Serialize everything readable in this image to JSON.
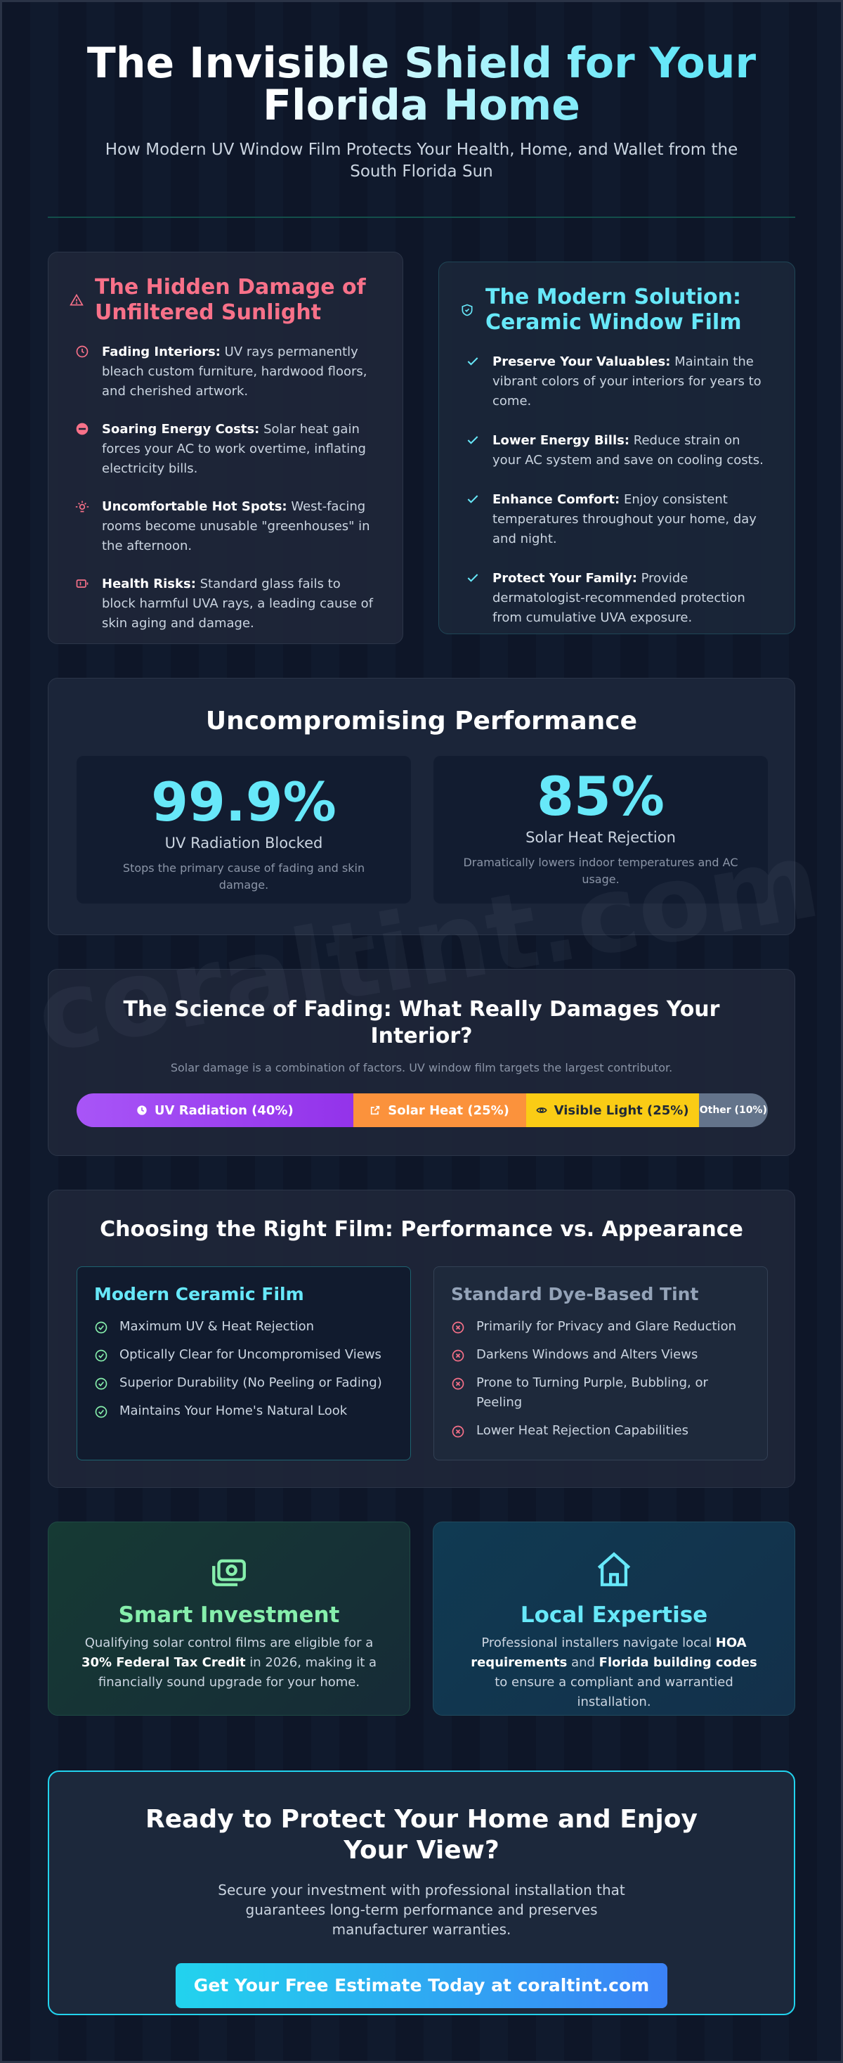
{
  "header": {
    "title": "The Invisible Shield for Your Florida Home",
    "subtitle": "How Modern UV Window Film Protects Your Health, Home, and Wallet from the South Florida Sun"
  },
  "damage": {
    "title": "The Hidden Damage of Unfiltered Sunlight",
    "items": [
      {
        "bold": "Fading Interiors:",
        "text": " UV rays permanently bleach custom furniture, hardwood floors, and cherished artwork.",
        "icon": "clock-icon"
      },
      {
        "bold": "Soaring Energy Costs:",
        "text": " Solar heat gain forces your AC to work overtime, inflating electricity bills.",
        "icon": "minus-circle-icon"
      },
      {
        "bold": "Uncomfortable Hot Spots:",
        "text": " West-facing rooms become unusable \"greenhouses\" in the afternoon.",
        "icon": "sun-icon"
      },
      {
        "bold": "Health Risks:",
        "text": " Standard glass fails to block harmful UVA rays, a leading cause of skin aging and damage.",
        "icon": "battery-icon"
      }
    ]
  },
  "solution": {
    "title": "The Modern Solution: Ceramic Window Film",
    "items": [
      {
        "bold": "Preserve Your Valuables:",
        "text": " Maintain the vibrant colors of your interiors for years to come."
      },
      {
        "bold": "Lower Energy Bills:",
        "text": " Reduce strain on your AC system and save on cooling costs."
      },
      {
        "bold": "Enhance Comfort:",
        "text": " Enjoy consistent temperatures throughout your home, day and night."
      },
      {
        "bold": "Protect Your Family:",
        "text": " Provide dermatologist-recommended protection from cumulative UVA exposure."
      }
    ]
  },
  "performance": {
    "title": "Uncompromising Performance",
    "stats": [
      {
        "value": "99.9%",
        "label": "UV Radiation Blocked",
        "desc": "Stops the primary cause of fading and skin damage."
      },
      {
        "value": "85%",
        "label": "Solar Heat Rejection",
        "desc": "Dramatically lowers indoor temperatures and AC usage."
      }
    ]
  },
  "science": {
    "title": "The Science of Fading: What Really Damages Your Interior?",
    "subtitle": "Solar damage is a combination of factors. UV window film targets the largest contributor.",
    "segments": [
      {
        "label": "UV Radiation (40%)",
        "percent": 40,
        "color": "#a855f7",
        "text_color": "#ffffff",
        "icon": "clock-icon"
      },
      {
        "label": "Solar Heat (25%)",
        "percent": 25,
        "color": "#fb923c",
        "text_color": "#ffffff",
        "icon": "external-icon"
      },
      {
        "label": "Visible Light (25%)",
        "percent": 25,
        "color": "#facc15",
        "text_color": "#1f2937",
        "icon": "eye-icon"
      },
      {
        "label": "Other (10%)",
        "percent": 10,
        "color": "#64748b",
        "text_color": "#ffffff",
        "icon": ""
      }
    ]
  },
  "choose": {
    "title": "Choosing the Right Film: Performance vs. Appearance",
    "ceramic": {
      "title": "Modern Ceramic Film",
      "items": [
        "Maximum UV & Heat Rejection",
        "Optically Clear for Uncompromised Views",
        "Superior Durability (No Peeling or Fading)",
        "Maintains Your Home's Natural Look"
      ]
    },
    "dye": {
      "title": "Standard Dye-Based Tint",
      "items": [
        "Primarily for Privacy and Glare Reduction",
        "Darkens Windows and Alters Views",
        "Prone to Turning Purple, Bubbling, or Peeling",
        "Lower Heat Rejection Capabilities"
      ]
    }
  },
  "invest": {
    "title": "Smart Investment",
    "t1": "Qualifying solar control films are eligible for a ",
    "b1": "30% Federal Tax Credit",
    "t2": " in 2026, making it a financially sound upgrade for your home.",
    "icon": "money-icon"
  },
  "expert": {
    "title": "Local Expertise",
    "t1": "Professional installers navigate local ",
    "b1": "HOA requirements",
    "t2": " and ",
    "b2": "Florida building codes",
    "t3": " to ensure a compliant and warrantied installation.",
    "icon": "home-icon"
  },
  "cta": {
    "title": "Ready to Protect Your Home and Enjoy Your View?",
    "text": "Secure your investment with professional installation that guarantees long-term performance and preserves manufacturer warranties.",
    "button": "Get Your Free Estimate Today at coraltint.com"
  },
  "watermark": "coraltint.com",
  "colors": {
    "accent_cyan": "#67e8f9",
    "accent_red": "#f87189",
    "accent_green": "#86efac"
  }
}
